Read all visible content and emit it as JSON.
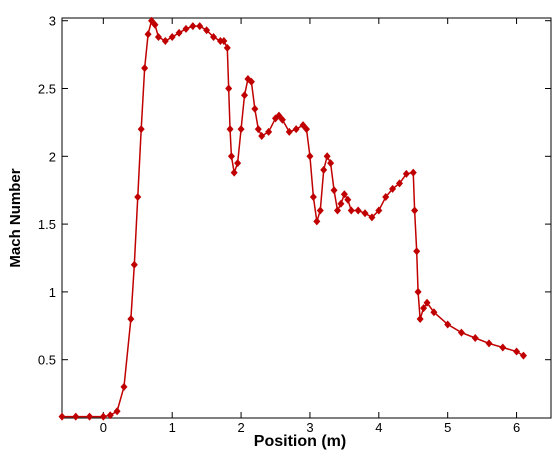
{
  "chart_data": {
    "type": "line",
    "x_label": "Position (m)",
    "y_label": "Mach Number",
    "x": [
      -0.6,
      -0.4,
      -0.2,
      0.0,
      0.1,
      0.2,
      0.3,
      0.4,
      0.45,
      0.5,
      0.55,
      0.6,
      0.65,
      0.7,
      0.75,
      0.8,
      0.9,
      1.0,
      1.1,
      1.2,
      1.3,
      1.4,
      1.5,
      1.6,
      1.7,
      1.75,
      1.8,
      1.82,
      1.84,
      1.86,
      1.9,
      1.95,
      2.0,
      2.05,
      2.1,
      2.15,
      2.2,
      2.25,
      2.3,
      2.4,
      2.5,
      2.55,
      2.6,
      2.7,
      2.8,
      2.9,
      2.95,
      3.0,
      3.05,
      3.1,
      3.15,
      3.2,
      3.25,
      3.3,
      3.35,
      3.4,
      3.45,
      3.5,
      3.55,
      3.6,
      3.7,
      3.8,
      3.9,
      4.0,
      4.1,
      4.2,
      4.3,
      4.4,
      4.5,
      4.52,
      4.55,
      4.57,
      4.6,
      4.65,
      4.7,
      4.8,
      5.0,
      5.2,
      5.4,
      5.6,
      5.8,
      6.0,
      6.1
    ],
    "series": [
      {
        "name": "Mach Number",
        "color": "#c00000",
        "values": [
          0.08,
          0.08,
          0.08,
          0.08,
          0.09,
          0.12,
          0.3,
          0.8,
          1.2,
          1.7,
          2.2,
          2.65,
          2.9,
          3.0,
          2.97,
          2.88,
          2.85,
          2.88,
          2.91,
          2.94,
          2.96,
          2.96,
          2.93,
          2.88,
          2.85,
          2.85,
          2.8,
          2.5,
          2.2,
          2.0,
          1.88,
          1.95,
          2.2,
          2.45,
          2.57,
          2.55,
          2.35,
          2.2,
          2.15,
          2.18,
          2.28,
          2.3,
          2.27,
          2.18,
          2.2,
          2.23,
          2.2,
          2.0,
          1.7,
          1.52,
          1.6,
          1.9,
          2.0,
          1.95,
          1.75,
          1.6,
          1.65,
          1.72,
          1.68,
          1.6,
          1.6,
          1.58,
          1.55,
          1.6,
          1.7,
          1.76,
          1.8,
          1.87,
          1.88,
          1.6,
          1.3,
          1.0,
          0.8,
          0.88,
          0.92,
          0.85,
          0.76,
          0.7,
          0.66,
          0.62,
          0.59,
          0.56,
          0.53
        ]
      }
    ],
    "xlim": [
      -0.6,
      6.5
    ],
    "ylim": [
      0.07,
      3.02
    ],
    "xticks": [
      0,
      1,
      2,
      3,
      4,
      5,
      6
    ],
    "yticks": [
      0.5,
      1,
      1.5,
      2,
      2.5,
      3
    ]
  }
}
